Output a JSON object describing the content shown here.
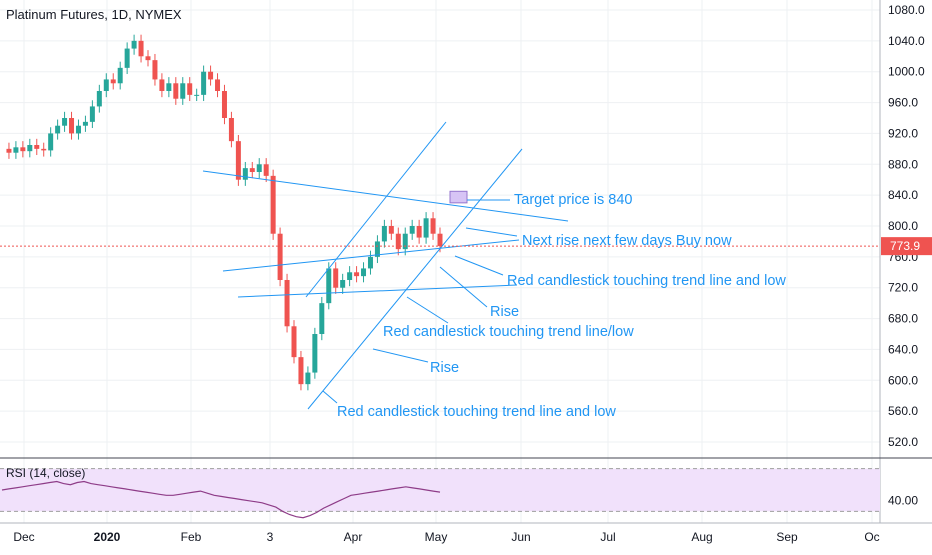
{
  "header": {
    "title": "Platinum Futures, 1D, NYMEX"
  },
  "colors": {
    "up": "#26a69a",
    "down": "#ef5350",
    "annotation": "#2196f3",
    "last_price_label_bg": "#ef5350",
    "rsi_line": "#8e3c88",
    "rsi_band": "#f1e1fb",
    "grid": "#eef0f3",
    "axis_text": "#131722"
  },
  "chart_data": [
    {
      "type": "candlestick",
      "title": "Platinum Futures, 1D, NYMEX",
      "ylim": [
        490,
        1090
      ],
      "y_ticks": [
        "1080.0",
        "1040.0",
        "1000.0",
        "960.0",
        "920.0",
        "880.0",
        "840.0",
        "800.0",
        "760.0",
        "720.0",
        "680.0",
        "640.0",
        "600.0",
        "560.0",
        "520.0"
      ],
      "y_tick_values": [
        1080,
        1040,
        1000,
        960,
        920,
        880,
        840,
        800,
        760,
        720,
        680,
        640,
        600,
        560,
        520
      ],
      "x_ticks": [
        "Dec",
        "2020",
        "Feb",
        "3",
        "Apr",
        "May",
        "Jun",
        "Jul",
        "Aug",
        "Sep",
        "Oc"
      ],
      "last_price": 773.9,
      "last_price_label": "773.9",
      "close_path": [
        [
          0,
          900
        ],
        [
          0.5,
          895
        ],
        [
          1,
          902
        ],
        [
          1.5,
          897
        ],
        [
          2,
          905
        ],
        [
          2.5,
          900
        ],
        [
          3,
          898
        ],
        [
          3.5,
          920
        ],
        [
          4,
          930
        ],
        [
          4.5,
          940
        ],
        [
          5,
          920
        ],
        [
          5.5,
          930
        ],
        [
          6,
          935
        ],
        [
          6.5,
          955
        ],
        [
          7,
          975
        ],
        [
          7.5,
          990
        ],
        [
          8,
          985
        ],
        [
          8.5,
          1005
        ],
        [
          9,
          1030
        ],
        [
          9.5,
          1040
        ],
        [
          10,
          1020
        ],
        [
          10.5,
          1015
        ],
        [
          11,
          990
        ],
        [
          11.5,
          975
        ],
        [
          12,
          985
        ],
        [
          12.5,
          965
        ],
        [
          13,
          985
        ],
        [
          13.5,
          970
        ],
        [
          14,
          970
        ],
        [
          14.5,
          1000
        ],
        [
          15,
          990
        ],
        [
          15.5,
          975
        ],
        [
          16,
          940
        ],
        [
          16.5,
          910
        ],
        [
          17,
          860
        ],
        [
          17.5,
          875
        ],
        [
          18,
          870
        ],
        [
          18.5,
          880
        ],
        [
          19,
          865
        ],
        [
          19.5,
          790
        ],
        [
          20,
          730
        ],
        [
          20.5,
          670
        ],
        [
          21,
          630
        ],
        [
          21.5,
          595
        ],
        [
          22,
          610
        ],
        [
          22.5,
          660
        ],
        [
          23,
          700
        ],
        [
          23.5,
          745
        ],
        [
          24,
          720
        ],
        [
          24.5,
          730
        ],
        [
          25,
          740
        ],
        [
          25.5,
          735
        ],
        [
          26,
          745
        ],
        [
          26.5,
          760
        ],
        [
          27,
          780
        ],
        [
          27.5,
          800
        ],
        [
          28,
          790
        ],
        [
          28.5,
          770
        ],
        [
          29,
          790
        ],
        [
          29.5,
          800
        ],
        [
          30,
          785
        ],
        [
          30.5,
          810
        ],
        [
          31,
          790
        ],
        [
          31.5,
          773.9
        ]
      ],
      "series": [
        {
          "name": "Target price is 840",
          "x": [
            31.5,
            31.5
          ],
          "values": [
            830,
            845
          ]
        }
      ],
      "annotations": [
        "Target price is 840",
        "Next rise next few days Buy now",
        "Red candlestick touching trend line and low",
        "Rise",
        "Red candlestick touching trend line/low",
        "Rise",
        "Red candlestick touching trend line and low"
      ]
    },
    {
      "type": "line",
      "title": "RSI (14, close)",
      "ylim": [
        20,
        80
      ],
      "band": [
        30,
        70
      ],
      "y_ticks": [
        "40.00"
      ],
      "y_tick_values": [
        40
      ],
      "values": [
        50,
        51,
        52,
        53,
        54,
        55,
        56,
        57,
        58,
        56,
        55,
        57,
        58,
        56,
        55,
        54,
        53,
        52,
        51,
        50,
        49,
        48,
        47,
        46,
        45,
        45,
        46,
        47,
        48,
        49,
        47,
        45,
        44,
        43,
        42,
        41,
        40,
        39,
        38,
        36,
        34,
        30,
        27,
        25,
        24,
        26,
        29,
        33,
        36,
        39,
        42,
        45,
        46,
        47,
        48,
        49,
        50,
        51,
        52,
        53,
        52,
        51,
        50,
        49,
        48
      ]
    }
  ]
}
